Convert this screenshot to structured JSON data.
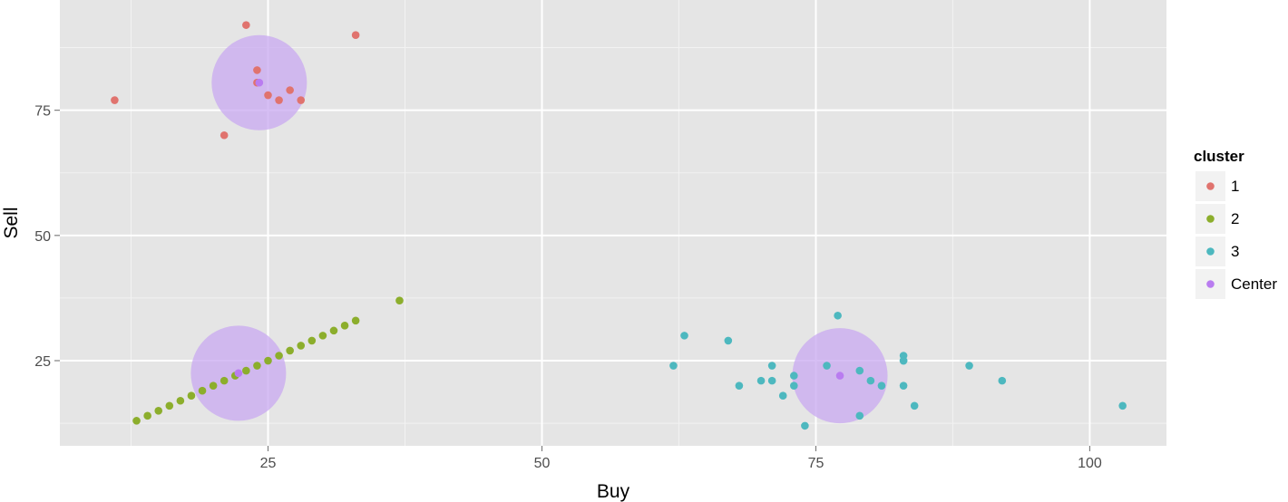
{
  "chart_data": {
    "type": "scatter",
    "xlabel": "Buy",
    "ylabel": "Sell",
    "xlim": [
      6,
      107
    ],
    "ylim": [
      8,
      97
    ],
    "x_ticks": [
      25,
      50,
      75,
      100
    ],
    "y_ticks": [
      25,
      50,
      75
    ],
    "grid": true,
    "legend_position": "right",
    "legend_title": "cluster",
    "colors": {
      "1": "#e0736e",
      "2": "#8cae2c",
      "3": "#4db8bf",
      "Center": "#b97cf0",
      "circle": "#c8a8f0",
      "panel": "#e5e5e5"
    },
    "series": [
      {
        "name": "1",
        "x": [
          11,
          23,
          33,
          24,
          27,
          24,
          25,
          26,
          28,
          21
        ],
        "y": [
          77,
          92,
          90,
          83,
          79,
          80.5,
          78,
          77,
          77,
          70
        ]
      },
      {
        "name": "2",
        "x": [
          13,
          14,
          15,
          16,
          17,
          18,
          19,
          20,
          21,
          22,
          23,
          24,
          25,
          26,
          27,
          28,
          29,
          30,
          31,
          32,
          33,
          37
        ],
        "y": [
          13,
          14,
          15,
          16,
          17,
          18,
          19,
          20,
          21,
          22,
          23,
          24,
          25,
          26,
          27,
          28,
          29,
          30,
          31,
          32,
          33,
          37
        ]
      },
      {
        "name": "3",
        "x": [
          62,
          63,
          67,
          68,
          70,
          71,
          71,
          72,
          73,
          73,
          74,
          76,
          77,
          79,
          79,
          80,
          81,
          83,
          83,
          83,
          83,
          84,
          89,
          92,
          103
        ],
        "y": [
          24,
          30,
          29,
          20,
          21,
          24,
          21,
          18,
          22,
          20,
          12,
          24,
          34,
          23,
          14,
          21,
          20,
          26,
          25,
          20,
          25,
          16,
          24,
          21,
          16
        ]
      },
      {
        "name": "Center",
        "x": [
          24.2,
          22.3,
          77.2
        ],
        "y": [
          80.5,
          22.5,
          22
        ]
      }
    ],
    "circles": [
      {
        "cx": 24.2,
        "cy": 80.5,
        "r": 9.5
      },
      {
        "cx": 22.3,
        "cy": 22.5,
        "r": 9.5
      },
      {
        "cx": 77.2,
        "cy": 22,
        "r": 9.5
      }
    ],
    "legend": [
      {
        "key": "1",
        "label": "1"
      },
      {
        "key": "2",
        "label": "2"
      },
      {
        "key": "3",
        "label": "3"
      },
      {
        "key": "Center",
        "label": "Center"
      }
    ]
  }
}
